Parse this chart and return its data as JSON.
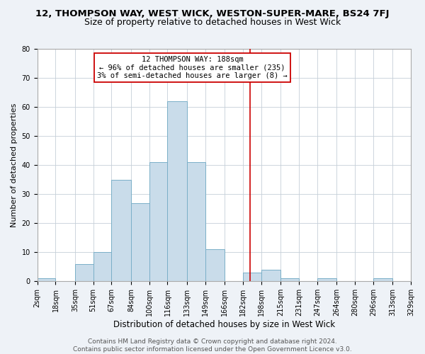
{
  "title": "12, THOMPSON WAY, WEST WICK, WESTON-SUPER-MARE, BS24 7FJ",
  "subtitle": "Size of property relative to detached houses in West Wick",
  "xlabel": "Distribution of detached houses by size in West Wick",
  "ylabel": "Number of detached properties",
  "bin_edges": [
    2,
    18,
    35,
    51,
    67,
    84,
    100,
    116,
    133,
    149,
    166,
    182,
    198,
    215,
    231,
    247,
    264,
    280,
    296,
    313,
    329
  ],
  "bin_heights": [
    1,
    0,
    6,
    10,
    35,
    27,
    41,
    62,
    41,
    11,
    0,
    3,
    4,
    1,
    0,
    1,
    0,
    0,
    1,
    0
  ],
  "bar_facecolor": "#c9dcea",
  "bar_edgecolor": "#7aafc8",
  "vline_x": 188,
  "vline_color": "#cc0000",
  "annotation_line1": "12 THOMPSON WAY: 188sqm",
  "annotation_line2": "← 96% of detached houses are smaller (235)",
  "annotation_line3": "3% of semi-detached houses are larger (8) →",
  "annotation_box_edgecolor": "#cc0000",
  "ylim": [
    0,
    80
  ],
  "yticks": [
    0,
    10,
    20,
    30,
    40,
    50,
    60,
    70,
    80
  ],
  "footer_line1": "Contains HM Land Registry data © Crown copyright and database right 2024.",
  "footer_line2": "Contains public sector information licensed under the Open Government Licence v3.0.",
  "title_fontsize": 9.5,
  "subtitle_fontsize": 9,
  "xlabel_fontsize": 8.5,
  "ylabel_fontsize": 8,
  "tick_fontsize": 7,
  "footer_fontsize": 6.5,
  "annotation_fontsize": 7.5,
  "background_color": "#eef2f7",
  "plot_background_color": "#ffffff",
  "grid_color": "#c5cfd8"
}
